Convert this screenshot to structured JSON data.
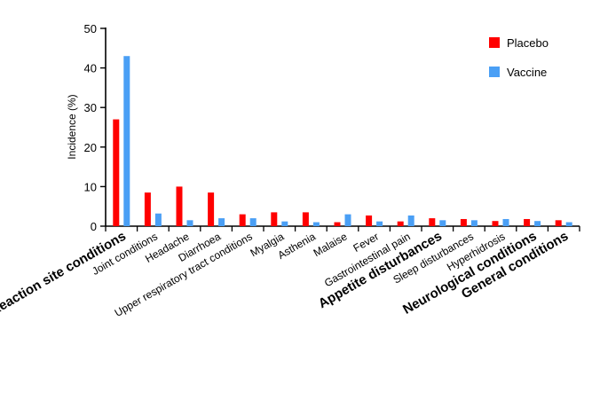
{
  "chart_data": {
    "type": "bar",
    "ylabel": "Incidence (%)",
    "ylim": [
      0,
      50
    ],
    "yticks": [
      "0",
      "10",
      "20",
      "30",
      "40",
      "50"
    ],
    "grid": false,
    "legend_position": "top-right",
    "categories": [
      "Reaction site conditions",
      "Joint conditions",
      "Headache",
      "Diarrhoea",
      "Upper respiratory tract conditions",
      "Myalgia",
      "Asthenia",
      "Malaise",
      "Fever",
      "Gastrointestinal pain",
      "Appetite disturbances",
      "Sleep disturbances",
      "Hyperhidrosis",
      "Neurological conditions",
      "General conditions"
    ],
    "series": [
      {
        "name": "Placebo",
        "color": "#ff0000",
        "values": [
          27,
          8.5,
          10,
          8.5,
          3,
          3.5,
          3.5,
          1,
          2.7,
          1.2,
          2,
          1.8,
          1.3,
          1.8,
          1.5
        ]
      },
      {
        "name": "Vaccine",
        "color": "#4a9ff5",
        "values": [
          43,
          3.2,
          1.5,
          2,
          2,
          1.2,
          1,
          3,
          1.2,
          2.7,
          1.5,
          1.5,
          1.8,
          1.3,
          1
        ]
      }
    ]
  }
}
